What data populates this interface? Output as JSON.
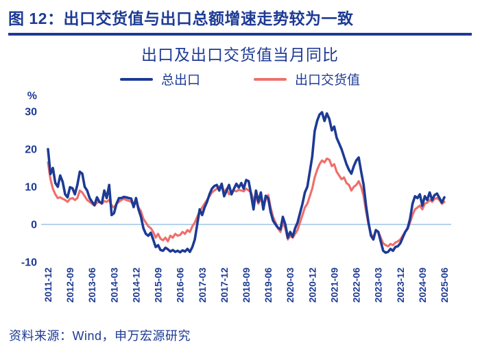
{
  "header": {
    "title": "图 12：出口交货值与出口总额增速走势较为一致"
  },
  "footer": {
    "source": "资料来源：Wind，申万宏源研究"
  },
  "colors": {
    "navy": "#1d3a94",
    "header_rule": "#1d3a94",
    "zero_line": "#9dc3e6",
    "blue_series": "#1d3a94",
    "red_series": "#ee6f6b"
  },
  "chart_data": {
    "type": "line",
    "title": "出口及出口交货值当月同比",
    "ylabel": "%",
    "ylim": [
      -10,
      30
    ],
    "yticks": [
      30,
      20,
      10,
      0,
      -10
    ],
    "grid": "zero-line-only",
    "legend_position": "top",
    "x_start": "2011-12",
    "x_end": "2025-06",
    "months_total": 163,
    "x_tick_month_indices": [
      0,
      9,
      18,
      27,
      36,
      45,
      54,
      63,
      72,
      81,
      90,
      99,
      108,
      117,
      126,
      135,
      144,
      153,
      162
    ],
    "x_tick_labels": [
      "2011-12",
      "2012-09",
      "2013-06",
      "2014-03",
      "2014-12",
      "2015-09",
      "2016-06",
      "2017-03",
      "2017-12",
      "2018-09",
      "2019-06",
      "2020-03",
      "2020-12",
      "2021-09",
      "2022-06",
      "2023-03",
      "2023-12",
      "2024-09",
      "2025-06"
    ],
    "series": [
      {
        "name": "总出口",
        "color": "#1d3a94",
        "line_width": 3.6,
        "values": [
          20.0,
          13.4,
          15.0,
          11.0,
          10.0,
          13.0,
          11.3,
          8.0,
          7.2,
          9.9,
          9.6,
          8.0,
          10.5,
          14.0,
          13.5,
          10.0,
          9.0,
          7.0,
          6.0,
          5.1,
          7.2,
          6.0,
          5.6,
          9.0,
          7.0,
          10.5,
          2.5,
          3.0,
          5.5,
          7.0,
          7.0,
          7.3,
          7.2,
          7.0,
          6.9,
          4.6,
          7.0,
          4.0,
          2.0,
          -1.0,
          -2.5,
          -3.0,
          -2.2,
          -4.0,
          -6.0,
          -5.5,
          -6.8,
          -7.0,
          -6.2,
          -6.6,
          -7.2,
          -6.8,
          -7.3,
          -7.0,
          -7.4,
          -6.9,
          -7.2,
          -6.5,
          -7.3,
          -6.0,
          -4.0,
          0.0,
          4.0,
          2.5,
          4.5,
          6.0,
          8.0,
          9.5,
          10.2,
          10.5,
          9.0,
          10.8,
          7.5,
          9.0,
          10.5,
          8.0,
          9.5,
          10.8,
          9.8,
          11.0,
          9.5,
          11.8,
          11.5,
          8.0,
          4.0,
          9.0,
          6.0,
          8.5,
          4.0,
          7.6,
          7.0,
          3.3,
          1.0,
          0.0,
          -0.9,
          -1.3,
          2.0,
          0.0,
          -3.5,
          -2.0,
          -3.3,
          -1.0,
          0.5,
          3.0,
          5.5,
          8.5,
          10.0,
          14.0,
          18.0,
          24.8,
          27.5,
          29.2,
          29.8,
          27.5,
          29.5,
          28.0,
          25.0,
          26.0,
          23.0,
          21.5,
          20.0,
          18.0,
          16.0,
          14.5,
          13.5,
          15.5,
          17.0,
          17.8,
          14.0,
          10.5,
          5.0,
          0.5,
          -3.0,
          -4.0,
          -1.5,
          -2.0,
          -4.5,
          -7.0,
          -7.5,
          -7.3,
          -6.5,
          -7.0,
          -6.0,
          -5.8,
          -5.0,
          -3.5,
          -2.0,
          -1.0,
          1.5,
          5.5,
          7.5,
          7.0,
          8.0,
          5.0,
          7.5,
          6.5,
          8.5,
          6.5,
          7.8,
          8.2,
          7.0,
          5.8,
          7.2
        ]
      },
      {
        "name": "出口交货值",
        "color": "#ee6f6b",
        "line_width": 3.2,
        "values": [
          16.5,
          12.0,
          9.5,
          8.0,
          7.0,
          7.2,
          6.8,
          6.5,
          6.0,
          6.8,
          7.0,
          6.5,
          7.0,
          9.0,
          8.5,
          7.5,
          6.5,
          6.0,
          5.5,
          5.0,
          5.8,
          6.0,
          5.5,
          6.2,
          6.0,
          6.5,
          5.0,
          4.5,
          5.5,
          6.0,
          6.5,
          6.8,
          6.5,
          6.3,
          6.0,
          5.0,
          6.0,
          4.5,
          3.5,
          1.5,
          0.5,
          -0.5,
          -1.0,
          -2.0,
          -3.5,
          -2.5,
          -3.8,
          -4.2,
          -3.5,
          -4.5,
          -3.0,
          -3.5,
          -2.5,
          -3.0,
          -2.8,
          -2.0,
          -2.5,
          -1.5,
          -2.0,
          -0.5,
          0.5,
          2.0,
          3.5,
          4.5,
          5.5,
          6.5,
          7.5,
          8.5,
          9.0,
          9.5,
          10.0,
          10.5,
          8.5,
          9.5,
          8.0,
          8.5,
          9.0,
          8.8,
          9.2,
          9.0,
          8.8,
          9.5,
          9.0,
          8.5,
          6.5,
          7.5,
          5.5,
          7.0,
          5.0,
          6.5,
          7.8,
          4.5,
          2.0,
          0.5,
          -1.0,
          -2.0,
          0.5,
          -1.0,
          -4.0,
          -3.0,
          -3.5,
          -2.5,
          -1.5,
          0.5,
          2.5,
          4.5,
          5.5,
          7.5,
          9.5,
          12.5,
          14.5,
          16.0,
          17.0,
          16.5,
          17.5,
          17.2,
          15.5,
          16.0,
          14.0,
          13.0,
          12.0,
          12.5,
          11.0,
          10.5,
          9.0,
          10.0,
          10.5,
          11.5,
          10.0,
          7.5,
          3.5,
          0.0,
          -2.5,
          -3.5,
          -1.5,
          -2.0,
          -3.5,
          -5.0,
          -5.5,
          -5.8,
          -5.2,
          -5.5,
          -4.8,
          -4.5,
          -4.0,
          -3.0,
          -2.0,
          -1.2,
          0.5,
          2.5,
          4.0,
          4.5,
          5.0,
          4.0,
          5.5,
          5.8,
          6.5,
          6.0,
          6.8,
          7.0,
          6.5,
          5.5,
          6.0
        ]
      }
    ]
  }
}
